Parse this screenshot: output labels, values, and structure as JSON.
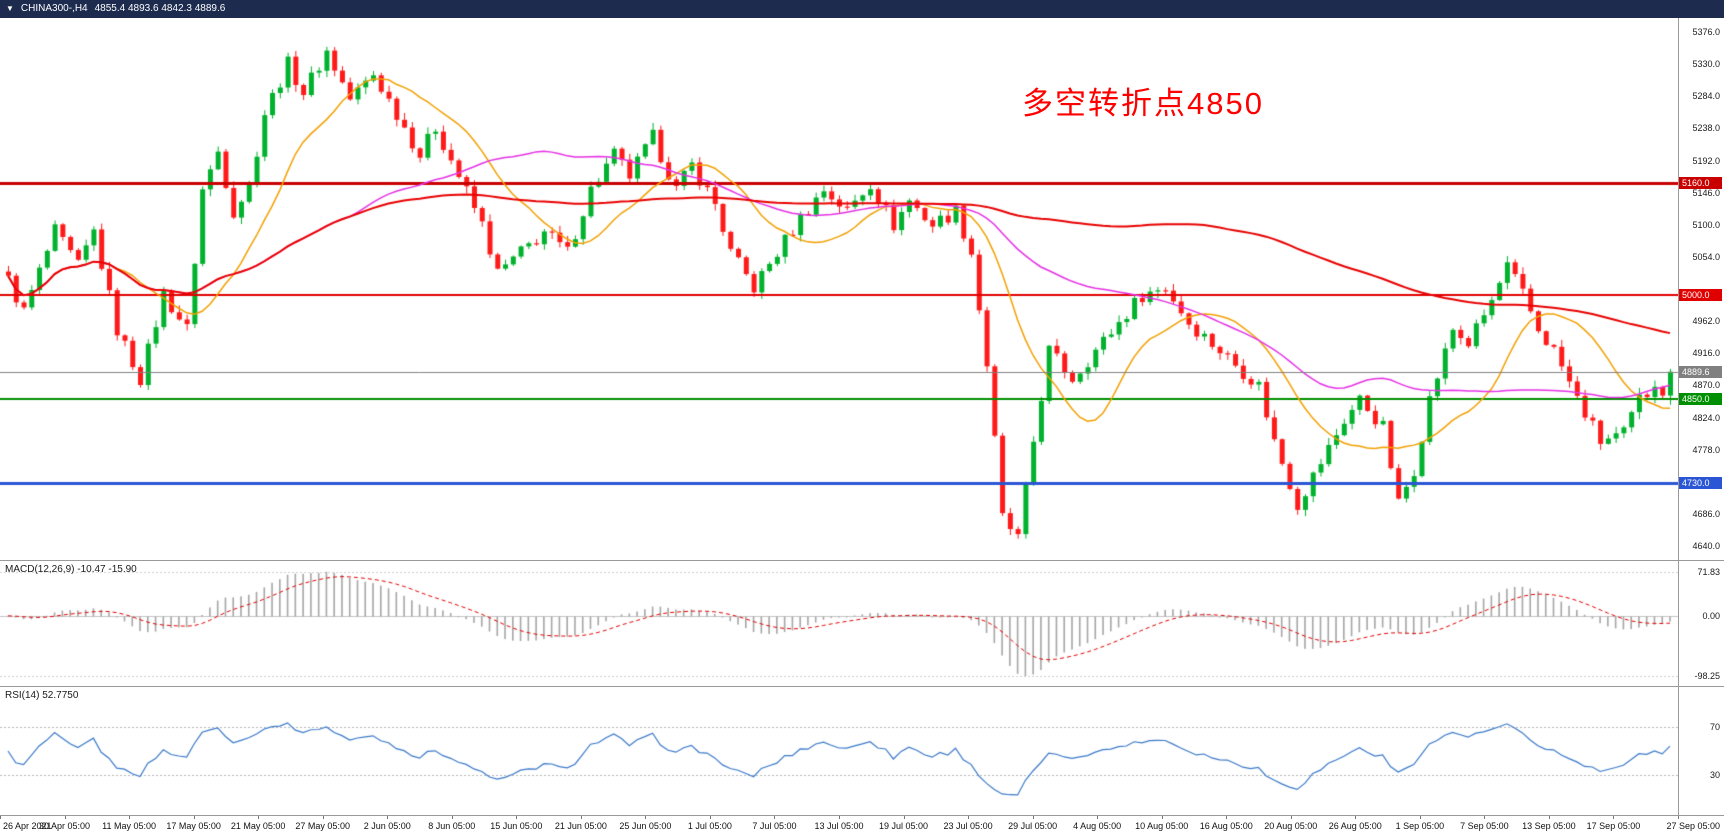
{
  "header": {
    "collapse_icon": "▼",
    "symbol_period": "CHINA300-,H4",
    "ohlc_readout": "4855.4 4893.6 4842.3 4889.6"
  },
  "annotation": {
    "text": "多空转折点4850",
    "color": "#ff0000"
  },
  "macd": {
    "label": "MACD(12,26,9) -10.47 -15.90"
  },
  "rsi": {
    "label": "RSI(14) 52.7750"
  },
  "chart_data": {
    "type": "candlestick",
    "symbol": "CHINA300-,H4",
    "timeframe": "H4",
    "last_bar": {
      "open": 4855.4,
      "high": 4893.6,
      "low": 4842.3,
      "close": 4889.6
    },
    "candle_count": 215,
    "close_waypoints": [
      [
        0,
        5020
      ],
      [
        2,
        4975
      ],
      [
        6,
        5090
      ],
      [
        9,
        5040
      ],
      [
        11,
        5090
      ],
      [
        14,
        4950
      ],
      [
        17,
        4880
      ],
      [
        20,
        5000
      ],
      [
        23,
        4950
      ],
      [
        25,
        5150
      ],
      [
        27,
        5205
      ],
      [
        29,
        5120
      ],
      [
        31,
        5155
      ],
      [
        33,
        5260
      ],
      [
        36,
        5330
      ],
      [
        38,
        5290
      ],
      [
        41,
        5348
      ],
      [
        44,
        5280
      ],
      [
        47,
        5315
      ],
      [
        50,
        5260
      ],
      [
        53,
        5200
      ],
      [
        55,
        5240
      ],
      [
        58,
        5170
      ],
      [
        61,
        5100
      ],
      [
        63,
        5030
      ],
      [
        66,
        5060
      ],
      [
        69,
        5090
      ],
      [
        72,
        5060
      ],
      [
        75,
        5150
      ],
      [
        78,
        5200
      ],
      [
        80,
        5170
      ],
      [
        83,
        5225
      ],
      [
        86,
        5150
      ],
      [
        88,
        5185
      ],
      [
        91,
        5130
      ],
      [
        93,
        5060
      ],
      [
        96,
        5010
      ],
      [
        99,
        5060
      ],
      [
        102,
        5110
      ],
      [
        105,
        5150
      ],
      [
        108,
        5120
      ],
      [
        111,
        5160
      ],
      [
        114,
        5100
      ],
      [
        116,
        5135
      ],
      [
        119,
        5100
      ],
      [
        122,
        5120
      ],
      [
        124,
        5060
      ],
      [
        126,
        4900
      ],
      [
        128,
        4680
      ],
      [
        130,
        4650
      ],
      [
        132,
        4790
      ],
      [
        134,
        4920
      ],
      [
        137,
        4880
      ],
      [
        140,
        4920
      ],
      [
        143,
        4960
      ],
      [
        146,
        5000
      ],
      [
        149,
        5010
      ],
      [
        152,
        4960
      ],
      [
        155,
        4930
      ],
      [
        158,
        4900
      ],
      [
        161,
        4870
      ],
      [
        163,
        4790
      ],
      [
        166,
        4700
      ],
      [
        169,
        4760
      ],
      [
        172,
        4820
      ],
      [
        174,
        4850
      ],
      [
        177,
        4810
      ],
      [
        179,
        4700
      ],
      [
        181,
        4750
      ],
      [
        183,
        4850
      ],
      [
        186,
        4950
      ],
      [
        188,
        4930
      ],
      [
        191,
        4990
      ],
      [
        193,
        5040
      ],
      [
        195,
        5000
      ],
      [
        197,
        4950
      ],
      [
        199,
        4920
      ],
      [
        202,
        4850
      ],
      [
        205,
        4790
      ],
      [
        208,
        4800
      ],
      [
        210,
        4850
      ],
      [
        212,
        4868
      ],
      [
        213,
        4855.4
      ],
      [
        214,
        4889.6
      ]
    ],
    "candle_colors": {
      "up": "#00b22d",
      "down": "#ff1a1a"
    },
    "y_axis": {
      "min": 4640,
      "max": 5376,
      "tick_step": 46,
      "ticks": [
        {
          "price": 5376,
          "label": "5376.0"
        },
        {
          "price": 5330,
          "label": "5330.0"
        },
        {
          "price": 5284,
          "label": "5284.0"
        },
        {
          "price": 5238,
          "label": "5238.0"
        },
        {
          "price": 5192,
          "label": "5192.0"
        },
        {
          "price": 5146,
          "label": "5146.0"
        },
        {
          "price": 5100,
          "label": "5100.0"
        },
        {
          "price": 5054,
          "label": "5054.0"
        },
        {
          "price": 4962,
          "label": "4962.0"
        },
        {
          "price": 4916,
          "label": "4916.0"
        },
        {
          "price": 4870,
          "label": "4870.0"
        },
        {
          "price": 4824,
          "label": "4824.0"
        },
        {
          "price": 4778,
          "label": "4778.0"
        },
        {
          "price": 4686,
          "label": "4686.0"
        },
        {
          "price": 4640,
          "label": "4640.0"
        }
      ]
    },
    "price_levels": [
      {
        "price": 5160.0,
        "label": "5160.0",
        "color": "#c80000",
        "width": 3,
        "current": false
      },
      {
        "price": 5000.0,
        "label": "5000.0",
        "color": "#e00000",
        "width": 2,
        "current": false
      },
      {
        "price": 4889.6,
        "label": "4889.6",
        "color": "#808080",
        "width": 1,
        "current": true
      },
      {
        "price": 4850.0,
        "label": "4850.0",
        "color": "#008f00",
        "width": 2,
        "current": false
      },
      {
        "price": 4730.0,
        "label": "4730.0",
        "color": "#2a55d4",
        "width": 3,
        "current": false
      }
    ],
    "moving_averages": [
      {
        "period": 14,
        "color": "#f2a000",
        "width": 1.5
      },
      {
        "period": 45,
        "color": "#e531e5",
        "width": 1.5
      },
      {
        "period": 130,
        "color": "#e80000",
        "width": 2
      }
    ],
    "indicators": {
      "macd": {
        "fast": 12,
        "slow": 26,
        "signal": 9,
        "current_macd": -10.47,
        "current_signal": -15.9,
        "hist_color": "#a6a6a6",
        "signal_color": "#e00000",
        "axis_values": [
          71.83,
          0,
          -98.25
        ],
        "axis_labels": [
          "71.83",
          "0.00",
          "-98.25"
        ]
      },
      "rsi": {
        "period": 14,
        "current": 52.775,
        "color": "#3b79c9",
        "levels": [
          70,
          30
        ],
        "axis_labels": [
          "70",
          "30"
        ]
      }
    },
    "x_axis": {
      "labels": [
        "26 Apr 2021",
        "30 Apr 05:00",
        "11 May 05:00",
        "17 May 05:00",
        "21 May 05:00",
        "27 May 05:00",
        "2 Jun 05:00",
        "8 Jun 05:00",
        "15 Jun 05:00",
        "21 Jun 05:00",
        "25 Jun 05:00",
        "1 Jul 05:00",
        "7 Jul 05:00",
        "13 Jul 05:00",
        "19 Jul 05:00",
        "23 Jul 05:00",
        "29 Jul 05:00",
        "4 Aug 05:00",
        "10 Aug 05:00",
        "16 Aug 05:00",
        "20 Aug 05:00",
        "26 Aug 05:00",
        "1 Sep 05:00",
        "7 Sep 05:00",
        "13 Sep 05:00",
        "17 Sep 05:00",
        "27 Sep 05:00"
      ]
    }
  }
}
